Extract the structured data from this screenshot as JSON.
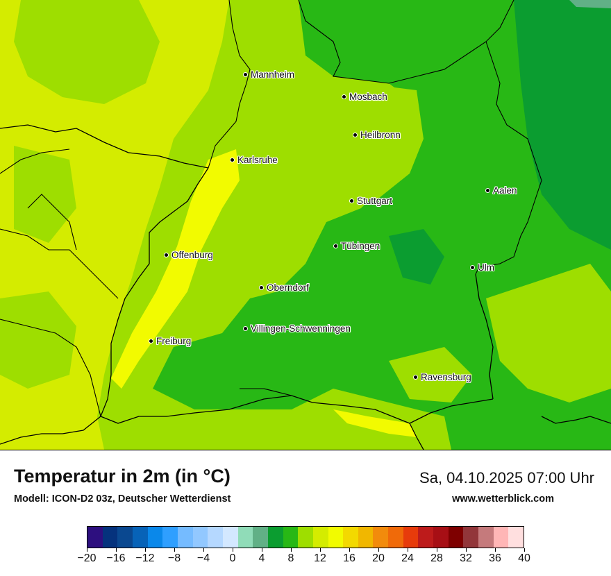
{
  "map": {
    "cities": [
      {
        "name": "Mannheim"
      },
      {
        "name": "Mosbach"
      },
      {
        "name": "Heilbronn"
      },
      {
        "name": "Karlsruhe"
      },
      {
        "name": "Aalen"
      },
      {
        "name": "Stuttgart"
      },
      {
        "name": "Tübingen"
      },
      {
        "name": "Offenburg"
      },
      {
        "name": "Ulm"
      },
      {
        "name": "Oberndorf"
      },
      {
        "name": "Villingen-Schwenningen"
      },
      {
        "name": "Freiburg"
      },
      {
        "name": "Ravensburg"
      }
    ]
  },
  "footer": {
    "title": "Temperatur in 2m (in °C)",
    "subtitle": "Modell: ICON-D2 03z, Deutscher Wetterdienst",
    "datetime": "Sa, 04.10.2025 07:00 Uhr",
    "website": "www.wetterblick.com"
  },
  "legend": {
    "ticks": [
      "−20",
      "−16",
      "−12",
      "−8",
      "−4",
      "0",
      "4",
      "8",
      "12",
      "16",
      "20",
      "24",
      "28",
      "32",
      "36",
      "40"
    ],
    "colors": [
      "#2d0f7f",
      "#05327d",
      "#0a4890",
      "#0763b8",
      "#0a88ea",
      "#2f9fff",
      "#75bbff",
      "#92c8ff",
      "#b5d8ff",
      "#d3e8ff",
      "#90dcb8",
      "#61b086",
      "#0b9d30",
      "#28b815",
      "#9ede00",
      "#d4ec00",
      "#f2fb00",
      "#f3d900",
      "#f1b700",
      "#f28b0c",
      "#f06a09",
      "#e73b0b",
      "#bd1b1b",
      "#a70f15",
      "#7e0000",
      "#92363a",
      "#c57a7c",
      "#ffb6b6",
      "#ffdfdf"
    ]
  },
  "colors": {
    "temp_6_8": "#61b086",
    "temp_8_10": "#0b9d30",
    "temp_10_12": "#28b815",
    "temp_12_14": "#9ede00",
    "temp_14_16": "#d4ec00",
    "temp_16_18": "#f2fb00"
  }
}
